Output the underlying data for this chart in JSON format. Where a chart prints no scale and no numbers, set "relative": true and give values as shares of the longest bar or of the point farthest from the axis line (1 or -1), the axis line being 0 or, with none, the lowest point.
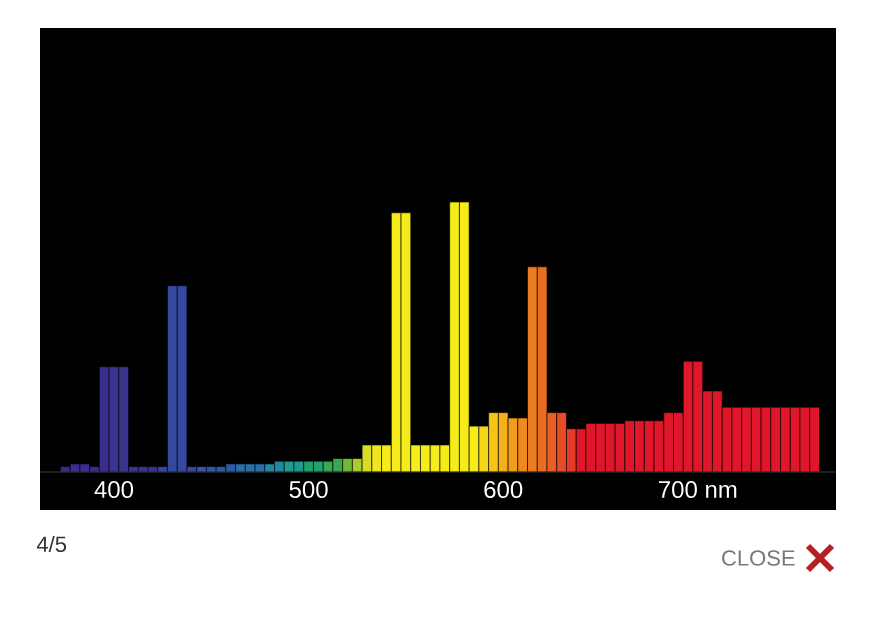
{
  "chart_data": {
    "type": "bar",
    "relative": true,
    "x": [
      375,
      380,
      385,
      390,
      395,
      400,
      405,
      410,
      415,
      420,
      425,
      430,
      435,
      440,
      445,
      450,
      455,
      460,
      465,
      470,
      475,
      480,
      485,
      490,
      495,
      500,
      505,
      510,
      515,
      520,
      525,
      530,
      535,
      540,
      545,
      550,
      555,
      560,
      565,
      570,
      575,
      580,
      585,
      590,
      595,
      600,
      605,
      610,
      615,
      620,
      625,
      630,
      635,
      640,
      645,
      650,
      655,
      660,
      665,
      670,
      675,
      680,
      685,
      690,
      695,
      700,
      705,
      710,
      715,
      720,
      725,
      730,
      735,
      740,
      745,
      750,
      755,
      760
    ],
    "values": [
      0.02,
      0.03,
      0.03,
      0.02,
      0.39,
      0.39,
      0.39,
      0.02,
      0.02,
      0.02,
      0.02,
      0.69,
      0.69,
      0.02,
      0.02,
      0.02,
      0.02,
      0.03,
      0.03,
      0.03,
      0.03,
      0.03,
      0.04,
      0.04,
      0.04,
      0.04,
      0.04,
      0.04,
      0.05,
      0.05,
      0.05,
      0.1,
      0.1,
      0.1,
      0.96,
      0.96,
      0.1,
      0.1,
      0.1,
      0.1,
      1,
      1,
      0.17,
      0.17,
      0.22,
      0.22,
      0.2,
      0.2,
      0.76,
      0.76,
      0.22,
      0.22,
      0.16,
      0.16,
      0.18,
      0.18,
      0.18,
      0.18,
      0.19,
      0.19,
      0.19,
      0.19,
      0.22,
      0.22,
      0.41,
      0.41,
      0.3,
      0.3,
      0.24,
      0.24,
      0.24,
      0.24,
      0.24,
      0.24,
      0.24,
      0.24,
      0.24,
      0.24
    ],
    "colors": [
      "#3b2d8c",
      "#3b2d8c",
      "#3b2d8c",
      "#3b2d8c",
      "#3b2d8c",
      "#37358f",
      "#37358f",
      "#37358f",
      "#37358f",
      "#37358f",
      "#33489e",
      "#33489e",
      "#33489e",
      "#33489e",
      "#2e5aa6",
      "#2e5aa6",
      "#2e5aa6",
      "#2e5aa6",
      "#2a6fa8",
      "#2a6fa8",
      "#2a6fa8",
      "#2188a0",
      "#2188a0",
      "#1f9a8c",
      "#1f9a8c",
      "#23a070",
      "#23a070",
      "#3aa850",
      "#3aa850",
      "#70b838",
      "#a8cc30",
      "#d8dc28",
      "#f0e620",
      "#f5ec1a",
      "#f5ec1a",
      "#f5ec1a",
      "#f5ec1a",
      "#f5ec1a",
      "#f5ec1a",
      "#f5ec1a",
      "#f5ec1a",
      "#f5ec1a",
      "#f5ec1a",
      "#f6d818",
      "#f5c415",
      "#f3b018",
      "#f09c1c",
      "#ee8a20",
      "#ec7c20",
      "#ea6e22",
      "#e85e24",
      "#e64c26",
      "#e43c28",
      "#e0162a",
      "#e0162a",
      "#e0162a",
      "#e0162a",
      "#e0162a",
      "#e0162a",
      "#e0162a",
      "#e0162a",
      "#e0162a",
      "#e0162a",
      "#e0162a",
      "#e0162a",
      "#e0162a",
      "#e0162a",
      "#e0162a",
      "#e0162a",
      "#e0162a",
      "#e0162a",
      "#e0162a",
      "#e0162a",
      "#e0162a",
      "#e0162a",
      "#e0162a",
      "#e0162a",
      "#e0162a"
    ],
    "xlim": [
      362,
      771
    ],
    "xticks": [
      400,
      500,
      600,
      {
        "value": 700,
        "label": "700 nm"
      }
    ],
    "annotations": [
      "4/5",
      "CLOSE"
    ]
  }
}
